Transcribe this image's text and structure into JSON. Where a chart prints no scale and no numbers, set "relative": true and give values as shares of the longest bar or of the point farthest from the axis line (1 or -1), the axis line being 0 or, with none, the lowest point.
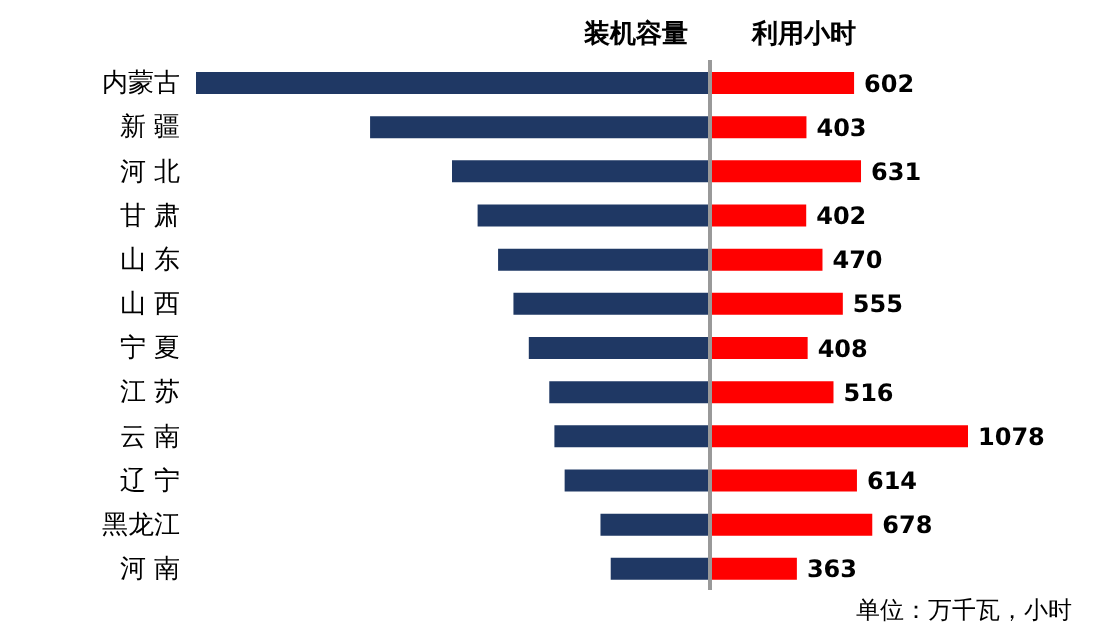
{
  "chart_data": [
    {
      "type": "bar",
      "orientation": "horizontal",
      "relative": true,
      "title": "装机容量",
      "categories": [
        "内蒙古",
        "新 疆",
        "河 北",
        "甘 肃",
        "山 东",
        "山 西",
        "宁 夏",
        "江 苏",
        "云 南",
        "辽 宁",
        "黑龙江",
        "河 南"
      ],
      "series": [
        {
          "color": "#1f3864",
          "values": [
            -1,
            -0.66,
            -0.5,
            -0.45,
            -0.41,
            -0.38,
            -0.35,
            -0.31,
            -0.3,
            -0.28,
            -0.21,
            -0.19
          ]
        }
      ]
    },
    {
      "type": "bar",
      "orientation": "horizontal",
      "title": "利用小时",
      "data_labels": true,
      "categories": [
        null,
        null,
        null,
        null,
        null,
        null,
        null,
        null,
        null,
        null,
        null,
        null
      ],
      "series": [
        {
          "color": "#ff0000",
          "values": [
            602,
            403,
            631,
            402,
            470,
            555,
            408,
            516,
            1078,
            614,
            678,
            363
          ]
        }
      ],
      "annotations": [
        "单位：万千瓦，小时"
      ]
    }
  ]
}
